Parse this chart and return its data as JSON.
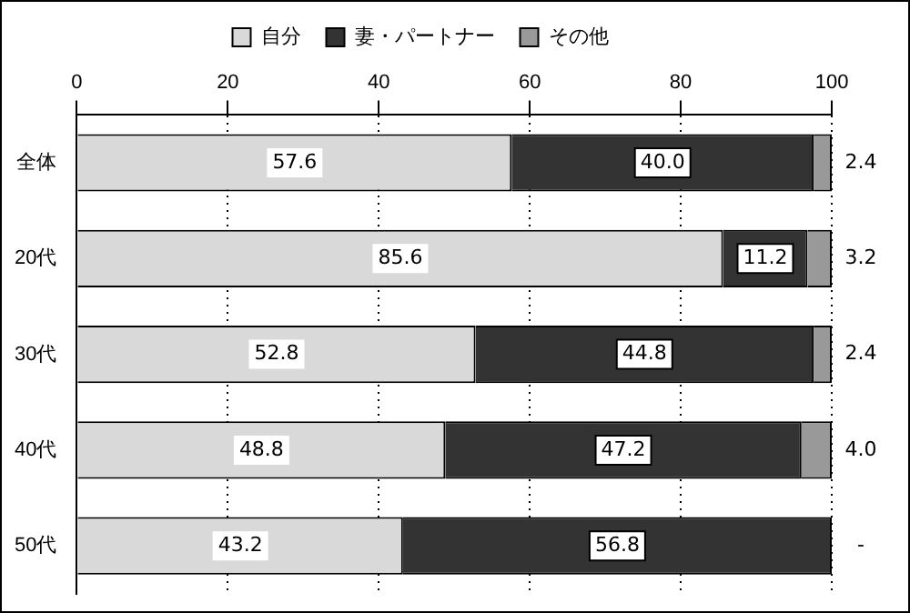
{
  "chart_data": {
    "type": "bar",
    "orientation": "horizontal",
    "stacked": true,
    "categories": [
      "全体",
      "20代",
      "30代",
      "40代",
      "50代"
    ],
    "series": [
      {
        "name": "自分",
        "color": "#d9d9d9",
        "values": [
          57.6,
          85.6,
          52.8,
          48.8,
          43.2
        ],
        "value_labels": [
          "57.6",
          "85.6",
          "52.8",
          "48.8",
          "43.2"
        ]
      },
      {
        "name": "妻・パートナー",
        "color": "#333333",
        "values": [
          40.0,
          11.2,
          44.8,
          47.2,
          56.8
        ],
        "value_labels": [
          "40.0",
          "11.2",
          "44.8",
          "47.2",
          "56.8"
        ]
      },
      {
        "name": "その他",
        "color": "#999999",
        "values": [
          2.4,
          3.2,
          2.4,
          4.0,
          0
        ],
        "value_labels": [
          "2.4",
          "3.2",
          "2.4",
          "4.0",
          "-"
        ]
      }
    ],
    "xlim": [
      0,
      100
    ],
    "xticks": [
      0,
      20,
      40,
      60,
      80,
      100
    ],
    "grid": "x",
    "legend": "top"
  }
}
